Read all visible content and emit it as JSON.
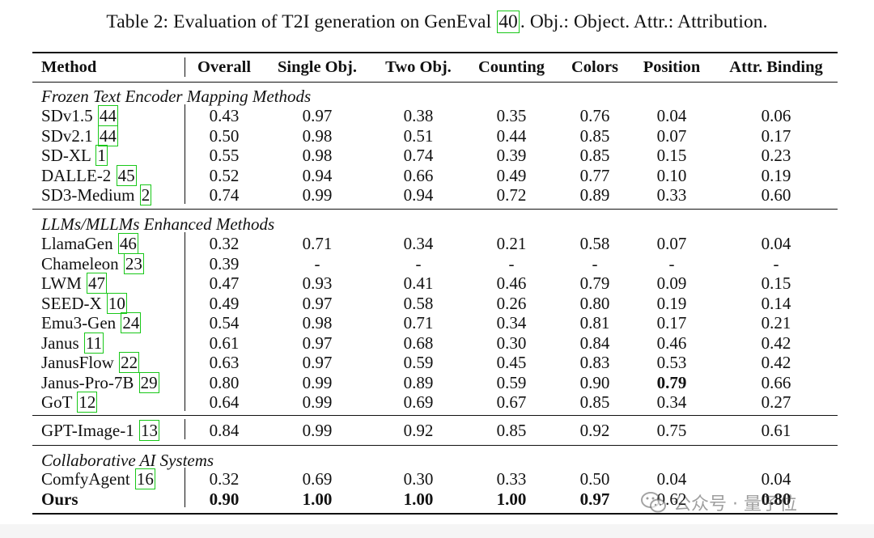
{
  "caption": {
    "prefix": "Table 2: Evaluation of T2I generation on GenEval ",
    "ref": "40",
    "suffix": ". Obj.: Object. Attr.: Attribution."
  },
  "headers": [
    "Method",
    "Overall",
    "Single Obj.",
    "Two Obj.",
    "Counting",
    "Colors",
    "Position",
    "Attr. Binding"
  ],
  "sections": [
    {
      "title": "Frozen Text Encoder Mapping Methods",
      "rows": [
        {
          "method": "SDv1.5",
          "ref": "44",
          "values": [
            "0.43",
            "0.97",
            "0.38",
            "0.35",
            "0.76",
            "0.04",
            "0.06"
          ]
        },
        {
          "method": "SDv2.1",
          "ref": "44",
          "values": [
            "0.50",
            "0.98",
            "0.51",
            "0.44",
            "0.85",
            "0.07",
            "0.17"
          ]
        },
        {
          "method": "SD-XL",
          "ref": "1",
          "values": [
            "0.55",
            "0.98",
            "0.74",
            "0.39",
            "0.85",
            "0.15",
            "0.23"
          ]
        },
        {
          "method": "DALLE-2",
          "ref": "45",
          "values": [
            "0.52",
            "0.94",
            "0.66",
            "0.49",
            "0.77",
            "0.10",
            "0.19"
          ]
        },
        {
          "method": "SD3-Medium",
          "ref": "2",
          "values": [
            "0.74",
            "0.99",
            "0.94",
            "0.72",
            "0.89",
            "0.33",
            "0.60"
          ]
        }
      ]
    },
    {
      "title": "LLMs/MLLMs Enhanced Methods",
      "rows": [
        {
          "method": "LlamaGen",
          "ref": "46",
          "values": [
            "0.32",
            "0.71",
            "0.34",
            "0.21",
            "0.58",
            "0.07",
            "0.04"
          ]
        },
        {
          "method": "Chameleon",
          "ref": "23",
          "values": [
            "0.39",
            "-",
            "-",
            "-",
            "-",
            "-",
            "-"
          ]
        },
        {
          "method": "LWM",
          "ref": "47",
          "values": [
            "0.47",
            "0.93",
            "0.41",
            "0.46",
            "0.79",
            "0.09",
            "0.15"
          ]
        },
        {
          "method": "SEED-X",
          "ref": "10",
          "values": [
            "0.49",
            "0.97",
            "0.58",
            "0.26",
            "0.80",
            "0.19",
            "0.14"
          ]
        },
        {
          "method": "Emu3-Gen",
          "ref": "24",
          "values": [
            "0.54",
            "0.98",
            "0.71",
            "0.34",
            "0.81",
            "0.17",
            "0.21"
          ]
        },
        {
          "method": "Janus",
          "ref": "11",
          "values": [
            "0.61",
            "0.97",
            "0.68",
            "0.30",
            "0.84",
            "0.46",
            "0.42"
          ]
        },
        {
          "method": "JanusFlow",
          "ref": "22",
          "values": [
            "0.63",
            "0.97",
            "0.59",
            "0.45",
            "0.83",
            "0.53",
            "0.42"
          ]
        },
        {
          "method": "Janus-Pro-7B",
          "ref": "29",
          "values": [
            "0.80",
            "0.99",
            "0.89",
            "0.59",
            "0.90",
            "0.79",
            "0.66"
          ],
          "bold_cols": [
            5
          ]
        },
        {
          "method": "GoT",
          "ref": "12",
          "values": [
            "0.64",
            "0.99",
            "0.69",
            "0.67",
            "0.85",
            "0.34",
            "0.27"
          ]
        }
      ]
    },
    {
      "title": "",
      "rows": [
        {
          "method": "GPT-Image-1",
          "ref": "13",
          "values": [
            "0.84",
            "0.99",
            "0.92",
            "0.85",
            "0.92",
            "0.75",
            "0.61"
          ]
        }
      ]
    },
    {
      "title": "Collaborative AI Systems",
      "rows": [
        {
          "method": "ComfyAgent",
          "ref": "16",
          "values": [
            "0.32",
            "0.69",
            "0.30",
            "0.33",
            "0.50",
            "0.04",
            "0.04"
          ]
        },
        {
          "method": "Ours",
          "ref": "",
          "values": [
            "0.90",
            "1.00",
            "1.00",
            "1.00",
            "0.97",
            "0.62",
            "0.80"
          ],
          "bold_cols": [
            0,
            1,
            2,
            3,
            4,
            6
          ],
          "bold_method": true
        }
      ]
    }
  ],
  "watermark": "公众号 · 量子位"
}
